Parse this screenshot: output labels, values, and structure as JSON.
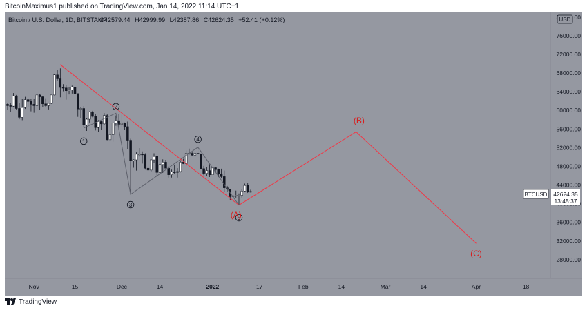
{
  "header": {
    "published_text": "BitcoinMaximus1 published on TradingView.com, Jan 14, 2022 11:14 UTC+1"
  },
  "footer": {
    "brand": "TradingView",
    "logo_icon": "tradingview-logo-icon"
  },
  "legend": {
    "symbol": "Bitcoin / U.S. Dollar, 1D, BITSTAMP",
    "o_label": "O",
    "o_value": "42579.44",
    "h_label": "H",
    "h_value": "42999.99",
    "l_label": "L",
    "l_value": "42387.86",
    "c_label": "C",
    "c_value": "42624.35",
    "change": "+52.41 (+0.12%)"
  },
  "chart_data": {
    "type": "candlestick",
    "title": "Bitcoin / U.S. Dollar, 1D, BITSTAMP",
    "currency": "USD",
    "ylim": [
      24000,
      81000
    ],
    "y_ticks": [
      28000,
      32000,
      36000,
      40000,
      44000,
      48000,
      52000,
      56000,
      60000,
      64000,
      68000,
      72000,
      76000,
      80000
    ],
    "y_tick_labels": [
      "28000.00",
      "32000.00",
      "36000.00",
      "40000.00",
      "44000.00",
      "48000.00",
      "52000.00",
      "56000.00",
      "60000.00",
      "64000.00",
      "68000.00",
      "72000.00",
      "76000.00",
      "80000.00"
    ],
    "x_tick_labels": [
      {
        "date": "2021-11-01",
        "label": "Nov"
      },
      {
        "date": "2021-11-15",
        "label": "15"
      },
      {
        "date": "2021-12-01",
        "label": "Dec"
      },
      {
        "date": "2021-12-14",
        "label": "14"
      },
      {
        "date": "2022-01-01",
        "label": "2022"
      },
      {
        "date": "2022-01-17",
        "label": "17"
      },
      {
        "date": "2022-02-01",
        "label": "Feb"
      },
      {
        "date": "2022-02-14",
        "label": "14"
      },
      {
        "date": "2022-03-01",
        "label": "Mar"
      },
      {
        "date": "2022-03-14",
        "label": "14"
      },
      {
        "date": "2022-04-01",
        "label": "Apr"
      },
      {
        "date": "2022-04-18",
        "label": "18"
      }
    ],
    "x_start": "2021-10-23",
    "x_end": "2022-04-24",
    "grid": false,
    "price_label": {
      "symbol": "BTCUSD",
      "price": "42624.35",
      "countdown": "13:45:37"
    },
    "colors": {
      "background": "#9598a1",
      "bull_body": "#ffffff",
      "bear_body": "#131722",
      "trend_line": "#f23645",
      "wave_line": "#5d606b"
    },
    "candles": [
      {
        "date": "2021-10-23",
        "o": 61300,
        "h": 61600,
        "l": 60100,
        "c": 61000
      },
      {
        "date": "2021-10-24",
        "o": 61000,
        "h": 61500,
        "l": 59600,
        "c": 60900
      },
      {
        "date": "2021-10-25",
        "o": 60900,
        "h": 63700,
        "l": 60700,
        "c": 63100
      },
      {
        "date": "2021-10-26",
        "o": 63100,
        "h": 63300,
        "l": 60100,
        "c": 60400
      },
      {
        "date": "2021-10-27",
        "o": 60400,
        "h": 61500,
        "l": 58100,
        "c": 58500
      },
      {
        "date": "2021-10-28",
        "o": 58500,
        "h": 62400,
        "l": 57900,
        "c": 60600
      },
      {
        "date": "2021-10-29",
        "o": 60600,
        "h": 62900,
        "l": 60300,
        "c": 62300
      },
      {
        "date": "2021-10-30",
        "o": 62300,
        "h": 62400,
        "l": 60800,
        "c": 61900
      },
      {
        "date": "2021-10-31",
        "o": 61900,
        "h": 62400,
        "l": 59800,
        "c": 61300
      },
      {
        "date": "2021-11-01",
        "o": 61300,
        "h": 62400,
        "l": 59500,
        "c": 61000
      },
      {
        "date": "2021-11-02",
        "o": 61000,
        "h": 64300,
        "l": 60600,
        "c": 63300
      },
      {
        "date": "2021-11-03",
        "o": 63300,
        "h": 63500,
        "l": 60100,
        "c": 62900
      },
      {
        "date": "2021-11-04",
        "o": 62900,
        "h": 63100,
        "l": 60700,
        "c": 61400
      },
      {
        "date": "2021-11-05",
        "o": 61400,
        "h": 62600,
        "l": 60700,
        "c": 61000
      },
      {
        "date": "2021-11-06",
        "o": 61000,
        "h": 61600,
        "l": 60200,
        "c": 61500
      },
      {
        "date": "2021-11-07",
        "o": 61500,
        "h": 63300,
        "l": 61400,
        "c": 63300
      },
      {
        "date": "2021-11-08",
        "o": 63300,
        "h": 67800,
        "l": 63200,
        "c": 67600
      },
      {
        "date": "2021-11-09",
        "o": 67600,
        "h": 68600,
        "l": 66400,
        "c": 66900
      },
      {
        "date": "2021-11-10",
        "o": 66900,
        "h": 69000,
        "l": 62800,
        "c": 64900
      },
      {
        "date": "2021-11-11",
        "o": 64900,
        "h": 65600,
        "l": 64100,
        "c": 64800
      },
      {
        "date": "2021-11-12",
        "o": 64800,
        "h": 65500,
        "l": 62300,
        "c": 64200
      },
      {
        "date": "2021-11-13",
        "o": 64200,
        "h": 64900,
        "l": 63400,
        "c": 64400
      },
      {
        "date": "2021-11-14",
        "o": 64400,
        "h": 65300,
        "l": 63600,
        "c": 65000
      },
      {
        "date": "2021-11-15",
        "o": 65000,
        "h": 66300,
        "l": 63500,
        "c": 63600
      },
      {
        "date": "2021-11-16",
        "o": 63600,
        "h": 63600,
        "l": 58600,
        "c": 60300
      },
      {
        "date": "2021-11-17",
        "o": 60300,
        "h": 60700,
        "l": 58400,
        "c": 60400
      },
      {
        "date": "2021-11-18",
        "o": 60400,
        "h": 60900,
        "l": 56500,
        "c": 56900
      },
      {
        "date": "2021-11-19",
        "o": 56900,
        "h": 58300,
        "l": 55600,
        "c": 58100
      },
      {
        "date": "2021-11-20",
        "o": 58100,
        "h": 59800,
        "l": 57400,
        "c": 59700
      },
      {
        "date": "2021-11-21",
        "o": 59700,
        "h": 59900,
        "l": 58500,
        "c": 58700
      },
      {
        "date": "2021-11-22",
        "o": 58700,
        "h": 59300,
        "l": 55700,
        "c": 56300
      },
      {
        "date": "2021-11-23",
        "o": 56300,
        "h": 57900,
        "l": 55400,
        "c": 57600
      },
      {
        "date": "2021-11-24",
        "o": 57600,
        "h": 57700,
        "l": 55800,
        "c": 57100
      },
      {
        "date": "2021-11-25",
        "o": 57100,
        "h": 59400,
        "l": 56900,
        "c": 58900
      },
      {
        "date": "2021-11-26",
        "o": 58900,
        "h": 59200,
        "l": 53600,
        "c": 53700
      },
      {
        "date": "2021-11-27",
        "o": 53700,
        "h": 55300,
        "l": 53700,
        "c": 54800
      },
      {
        "date": "2021-11-28",
        "o": 54800,
        "h": 57400,
        "l": 53300,
        "c": 57300
      },
      {
        "date": "2021-11-29",
        "o": 57300,
        "h": 58900,
        "l": 56700,
        "c": 57800
      },
      {
        "date": "2021-11-30",
        "o": 57800,
        "h": 59200,
        "l": 55900,
        "c": 57000
      },
      {
        "date": "2021-12-01",
        "o": 57000,
        "h": 59100,
        "l": 56500,
        "c": 57200
      },
      {
        "date": "2021-12-02",
        "o": 57200,
        "h": 57400,
        "l": 55800,
        "c": 56500
      },
      {
        "date": "2021-12-03",
        "o": 56500,
        "h": 57600,
        "l": 51700,
        "c": 53600
      },
      {
        "date": "2021-12-04",
        "o": 53600,
        "h": 53900,
        "l": 42000,
        "c": 49200
      },
      {
        "date": "2021-12-05",
        "o": 49200,
        "h": 49500,
        "l": 47700,
        "c": 49400
      },
      {
        "date": "2021-12-06",
        "o": 49400,
        "h": 51000,
        "l": 47100,
        "c": 50600
      },
      {
        "date": "2021-12-07",
        "o": 50600,
        "h": 51900,
        "l": 50100,
        "c": 50600
      },
      {
        "date": "2021-12-08",
        "o": 50600,
        "h": 51200,
        "l": 48600,
        "c": 50500
      },
      {
        "date": "2021-12-09",
        "o": 50500,
        "h": 50800,
        "l": 47300,
        "c": 47600
      },
      {
        "date": "2021-12-10",
        "o": 47600,
        "h": 50100,
        "l": 47000,
        "c": 47200
      },
      {
        "date": "2021-12-11",
        "o": 47200,
        "h": 49500,
        "l": 46800,
        "c": 49400
      },
      {
        "date": "2021-12-12",
        "o": 49400,
        "h": 50800,
        "l": 48700,
        "c": 50100
      },
      {
        "date": "2021-12-13",
        "o": 50100,
        "h": 50200,
        "l": 45800,
        "c": 46700
      },
      {
        "date": "2021-12-14",
        "o": 46700,
        "h": 48700,
        "l": 46300,
        "c": 48400
      },
      {
        "date": "2021-12-15",
        "o": 48400,
        "h": 49500,
        "l": 46600,
        "c": 48900
      },
      {
        "date": "2021-12-16",
        "o": 48900,
        "h": 49400,
        "l": 47600,
        "c": 47600
      },
      {
        "date": "2021-12-17",
        "o": 47600,
        "h": 48000,
        "l": 45600,
        "c": 46200
      },
      {
        "date": "2021-12-18",
        "o": 46200,
        "h": 47300,
        "l": 45600,
        "c": 46800
      },
      {
        "date": "2021-12-19",
        "o": 46800,
        "h": 48300,
        "l": 46400,
        "c": 46700
      },
      {
        "date": "2021-12-20",
        "o": 46700,
        "h": 47600,
        "l": 45600,
        "c": 46900
      },
      {
        "date": "2021-12-21",
        "o": 46900,
        "h": 49300,
        "l": 46700,
        "c": 48900
      },
      {
        "date": "2021-12-22",
        "o": 48900,
        "h": 49600,
        "l": 48500,
        "c": 48600
      },
      {
        "date": "2021-12-23",
        "o": 48600,
        "h": 51400,
        "l": 48100,
        "c": 50800
      },
      {
        "date": "2021-12-24",
        "o": 50800,
        "h": 51800,
        "l": 50500,
        "c": 50800
      },
      {
        "date": "2021-12-25",
        "o": 50800,
        "h": 51200,
        "l": 50200,
        "c": 50400
      },
      {
        "date": "2021-12-26",
        "o": 50400,
        "h": 51300,
        "l": 49500,
        "c": 50800
      },
      {
        "date": "2021-12-27",
        "o": 50800,
        "h": 52100,
        "l": 50500,
        "c": 50700
      },
      {
        "date": "2021-12-28",
        "o": 50700,
        "h": 50700,
        "l": 47400,
        "c": 47500
      },
      {
        "date": "2021-12-29",
        "o": 47500,
        "h": 48100,
        "l": 46100,
        "c": 46500
      },
      {
        "date": "2021-12-30",
        "o": 46500,
        "h": 47900,
        "l": 46000,
        "c": 47100
      },
      {
        "date": "2021-12-31",
        "o": 47100,
        "h": 48500,
        "l": 45700,
        "c": 46200
      },
      {
        "date": "2022-01-01",
        "o": 46200,
        "h": 47900,
        "l": 46200,
        "c": 47700
      },
      {
        "date": "2022-01-02",
        "o": 47700,
        "h": 47900,
        "l": 46700,
        "c": 47300
      },
      {
        "date": "2022-01-03",
        "o": 47300,
        "h": 47500,
        "l": 45700,
        "c": 46400
      },
      {
        "date": "2022-01-04",
        "o": 46400,
        "h": 47500,
        "l": 45500,
        "c": 45800
      },
      {
        "date": "2022-01-05",
        "o": 45800,
        "h": 47100,
        "l": 42500,
        "c": 43400
      },
      {
        "date": "2022-01-06",
        "o": 43400,
        "h": 43800,
        "l": 42500,
        "c": 43100
      },
      {
        "date": "2022-01-07",
        "o": 43100,
        "h": 43100,
        "l": 40700,
        "c": 41500
      },
      {
        "date": "2022-01-08",
        "o": 41500,
        "h": 42300,
        "l": 40600,
        "c": 41700
      },
      {
        "date": "2022-01-09",
        "o": 41700,
        "h": 42800,
        "l": 41300,
        "c": 41800
      },
      {
        "date": "2022-01-10",
        "o": 41800,
        "h": 42200,
        "l": 39700,
        "c": 41800
      },
      {
        "date": "2022-01-11",
        "o": 41800,
        "h": 43100,
        "l": 41300,
        "c": 42700
      },
      {
        "date": "2022-01-12",
        "o": 42700,
        "h": 44300,
        "l": 42500,
        "c": 43900
      },
      {
        "date": "2022-01-13",
        "o": 43900,
        "h": 44400,
        "l": 42300,
        "c": 42600
      },
      {
        "date": "2022-01-14",
        "o": 42579.44,
        "h": 42999.99,
        "l": 42387.86,
        "c": 42624.35
      }
    ],
    "annotations": {
      "trend_line": [
        {
          "date": "2021-11-10",
          "y": 69800
        },
        {
          "date": "2022-01-10",
          "y": 39700
        }
      ],
      "projection": [
        {
          "date": "2022-01-10",
          "y": 39700
        },
        {
          "date": "2022-02-19",
          "y": 55400
        },
        {
          "date": "2022-04-01",
          "y": 31500
        }
      ],
      "wave_path": [
        {
          "date": "2021-11-18",
          "y": 56200
        },
        {
          "date": "2021-11-29",
          "y": 59400
        },
        {
          "date": "2021-12-04",
          "y": 42000
        },
        {
          "date": "2021-12-27",
          "y": 52100
        },
        {
          "date": "2022-01-10",
          "y": 39700
        }
      ],
      "wave_labels": [
        {
          "text": "1",
          "date": "2021-11-18",
          "y": 53400,
          "circled": true
        },
        {
          "text": "2",
          "date": "2021-11-29",
          "y": 60800,
          "circled": true
        },
        {
          "text": "3",
          "date": "2021-12-04",
          "y": 39800,
          "circled": true
        },
        {
          "text": "4",
          "date": "2021-12-27",
          "y": 53800,
          "circled": true
        },
        {
          "text": "5",
          "date": "2022-01-10",
          "y": 37000,
          "circled": true
        }
      ],
      "letter_labels": [
        {
          "text": "(A)",
          "date": "2022-01-09",
          "y": 37000
        },
        {
          "text": "(B)",
          "date": "2022-02-20",
          "y": 57200
        },
        {
          "text": "(C)",
          "date": "2022-04-01",
          "y": 28700
        }
      ]
    }
  }
}
